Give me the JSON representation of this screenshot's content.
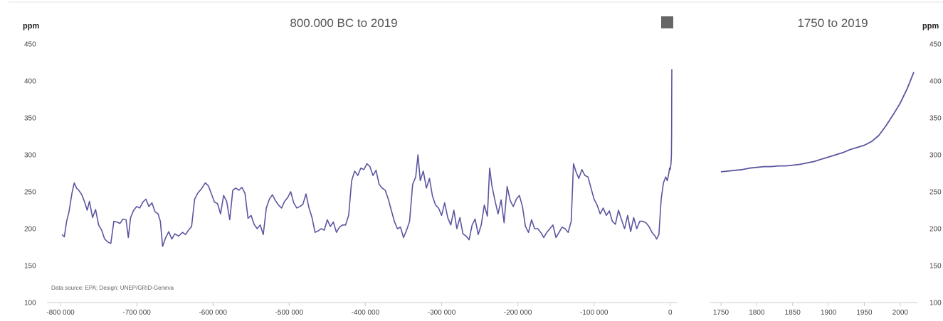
{
  "colors": {
    "series": "#5b56a0",
    "axis": "#cccccc",
    "top_rule": "#e6e6e6",
    "menu_icon": "#666666"
  },
  "icons": {
    "menu": "hamburger-menu-icon"
  },
  "source_note": "Data source: EPA; Design: UNEP/GRID-Geneva",
  "chart_data": [
    {
      "type": "line",
      "title": "800.000 BC to 2019",
      "ylabel": "ppm",
      "ylim": [
        100,
        450
      ],
      "yticks": [
        100,
        150,
        200,
        250,
        300,
        350,
        400,
        450
      ],
      "xlim": [
        -800000,
        2019
      ],
      "xticks": [
        {
          "v": -800000,
          "label": "-800 000"
        },
        {
          "v": -700000,
          "label": "-700 000"
        },
        {
          "v": -600000,
          "label": "-600 000"
        },
        {
          "v": -500000,
          "label": "-500 000"
        },
        {
          "v": -400000,
          "label": "-400 000"
        },
        {
          "v": -300000,
          "label": "-300 000"
        },
        {
          "v": -200000,
          "label": "-200 000"
        },
        {
          "v": -100000,
          "label": "-100 000"
        },
        {
          "v": 0,
          "label": "0"
        }
      ],
      "grid": false,
      "series": [
        {
          "points": [
            [
              -798000,
              192
            ],
            [
              -795000,
              189
            ],
            [
              -792000,
              210
            ],
            [
              -789000,
              222
            ],
            [
              -785000,
              248
            ],
            [
              -782000,
              262
            ],
            [
              -779000,
              255
            ],
            [
              -776000,
              252
            ],
            [
              -772000,
              246
            ],
            [
              -768000,
              235
            ],
            [
              -765000,
              225
            ],
            [
              -762000,
              237
            ],
            [
              -758000,
              215
            ],
            [
              -754000,
              226
            ],
            [
              -750000,
              205
            ],
            [
              -746000,
              198
            ],
            [
              -742000,
              186
            ],
            [
              -738000,
              182
            ],
            [
              -734000,
              180
            ],
            [
              -730000,
              210
            ],
            [
              -726000,
              209
            ],
            [
              -722000,
              207
            ],
            [
              -718000,
              213
            ],
            [
              -714000,
              212
            ],
            [
              -711000,
              188
            ],
            [
              -708000,
              215
            ],
            [
              -704000,
              225
            ],
            [
              -700000,
              230
            ],
            [
              -696000,
              228
            ],
            [
              -692000,
              236
            ],
            [
              -688000,
              240
            ],
            [
              -684000,
              230
            ],
            [
              -680000,
              235
            ],
            [
              -676000,
              223
            ],
            [
              -672000,
              220
            ],
            [
              -669000,
              210
            ],
            [
              -666000,
              176
            ],
            [
              -662000,
              188
            ],
            [
              -658000,
              196
            ],
            [
              -654000,
              186
            ],
            [
              -650000,
              193
            ],
            [
              -645000,
              190
            ],
            [
              -640000,
              195
            ],
            [
              -636000,
              192
            ],
            [
              -632000,
              198
            ],
            [
              -628000,
              203
            ],
            [
              -624000,
              240
            ],
            [
              -620000,
              248
            ],
            [
              -615000,
              254
            ],
            [
              -610000,
              262
            ],
            [
              -606000,
              258
            ],
            [
              -602000,
              247
            ],
            [
              -598000,
              236
            ],
            [
              -594000,
              234
            ],
            [
              -590000,
              220
            ],
            [
              -586000,
              245
            ],
            [
              -582000,
              237
            ],
            [
              -578000,
              212
            ],
            [
              -574000,
              252
            ],
            [
              -570000,
              255
            ],
            [
              -566000,
              252
            ],
            [
              -562000,
              256
            ],
            [
              -558000,
              248
            ],
            [
              -554000,
              214
            ],
            [
              -550000,
              218
            ],
            [
              -546000,
              206
            ],
            [
              -542000,
              200
            ],
            [
              -538000,
              205
            ],
            [
              -534000,
              192
            ],
            [
              -530000,
              228
            ],
            [
              -526000,
              240
            ],
            [
              -522000,
              246
            ],
            [
              -518000,
              238
            ],
            [
              -514000,
              232
            ],
            [
              -510000,
              228
            ],
            [
              -506000,
              237
            ],
            [
              -502000,
              242
            ],
            [
              -498000,
              250
            ],
            [
              -494000,
              235
            ],
            [
              -490000,
              228
            ],
            [
              -486000,
              230
            ],
            [
              -482000,
              233
            ],
            [
              -478000,
              247
            ],
            [
              -474000,
              228
            ],
            [
              -470000,
              215
            ],
            [
              -466000,
              195
            ],
            [
              -462000,
              197
            ],
            [
              -458000,
              200
            ],
            [
              -454000,
              198
            ],
            [
              -450000,
              212
            ],
            [
              -446000,
              203
            ],
            [
              -442000,
              209
            ],
            [
              -438000,
              195
            ],
            [
              -434000,
              202
            ],
            [
              -430000,
              205
            ],
            [
              -426000,
              205
            ],
            [
              -422000,
              218
            ],
            [
              -418000,
              265
            ],
            [
              -414000,
              278
            ],
            [
              -410000,
              272
            ],
            [
              -406000,
              282
            ],
            [
              -402000,
              280
            ],
            [
              -398000,
              288
            ],
            [
              -394000,
              284
            ],
            [
              -390000,
              272
            ],
            [
              -386000,
              279
            ],
            [
              -382000,
              260
            ],
            [
              -378000,
              255
            ],
            [
              -374000,
              252
            ],
            [
              -370000,
              240
            ],
            [
              -366000,
              225
            ],
            [
              -362000,
              210
            ],
            [
              -358000,
              200
            ],
            [
              -354000,
              202
            ],
            [
              -350000,
              188
            ],
            [
              -346000,
              198
            ],
            [
              -342000,
              210
            ],
            [
              -338000,
              260
            ],
            [
              -334000,
              270
            ],
            [
              -331000,
              300
            ],
            [
              -328000,
              265
            ],
            [
              -324000,
              278
            ],
            [
              -320000,
              255
            ],
            [
              -316000,
              268
            ],
            [
              -312000,
              244
            ],
            [
              -308000,
              232
            ],
            [
              -304000,
              228
            ],
            [
              -300000,
              218
            ],
            [
              -296000,
              235
            ],
            [
              -292000,
              215
            ],
            [
              -288000,
              205
            ],
            [
              -284000,
              225
            ],
            [
              -280000,
              200
            ],
            [
              -276000,
              215
            ],
            [
              -272000,
              193
            ],
            [
              -268000,
              190
            ],
            [
              -264000,
              185
            ],
            [
              -260000,
              205
            ],
            [
              -256000,
              213
            ],
            [
              -252000,
              192
            ],
            [
              -248000,
              205
            ],
            [
              -244000,
              232
            ],
            [
              -240000,
              217
            ],
            [
              -237000,
              282
            ],
            [
              -234000,
              258
            ],
            [
              -230000,
              238
            ],
            [
              -226000,
              220
            ],
            [
              -222000,
              239
            ],
            [
              -218000,
              208
            ],
            [
              -214000,
              257
            ],
            [
              -210000,
              238
            ],
            [
              -206000,
              230
            ],
            [
              -202000,
              240
            ],
            [
              -198000,
              245
            ],
            [
              -194000,
              230
            ],
            [
              -190000,
              203
            ],
            [
              -186000,
              195
            ],
            [
              -182000,
              212
            ],
            [
              -178000,
              200
            ],
            [
              -174000,
              200
            ],
            [
              -170000,
              195
            ],
            [
              -166000,
              188
            ],
            [
              -162000,
              195
            ],
            [
              -158000,
              200
            ],
            [
              -154000,
              205
            ],
            [
              -150000,
              188
            ],
            [
              -146000,
              195
            ],
            [
              -142000,
              202
            ],
            [
              -138000,
              200
            ],
            [
              -134000,
              195
            ],
            [
              -130000,
              210
            ],
            [
              -127000,
              288
            ],
            [
              -124000,
              278
            ],
            [
              -120000,
              268
            ],
            [
              -116000,
              280
            ],
            [
              -112000,
              272
            ],
            [
              -108000,
              270
            ],
            [
              -104000,
              255
            ],
            [
              -100000,
              240
            ],
            [
              -96000,
              232
            ],
            [
              -92000,
              220
            ],
            [
              -88000,
              228
            ],
            [
              -84000,
              218
            ],
            [
              -80000,
              224
            ],
            [
              -76000,
              210
            ],
            [
              -72000,
              206
            ],
            [
              -68000,
              225
            ],
            [
              -64000,
              212
            ],
            [
              -60000,
              200
            ],
            [
              -56000,
              218
            ],
            [
              -52000,
              196
            ],
            [
              -48000,
              215
            ],
            [
              -44000,
              200
            ],
            [
              -40000,
              210
            ],
            [
              -36000,
              210
            ],
            [
              -32000,
              208
            ],
            [
              -28000,
              203
            ],
            [
              -24000,
              195
            ],
            [
              -20000,
              190
            ],
            [
              -18000,
              186
            ],
            [
              -15000,
              192
            ],
            [
              -12000,
              240
            ],
            [
              -9000,
              262
            ],
            [
              -6000,
              270
            ],
            [
              -4000,
              265
            ],
            [
              -2000,
              275
            ],
            [
              -1000,
              282
            ],
            [
              0,
              280
            ],
            [
              500,
              285
            ],
            [
              1000,
              290
            ],
            [
              1500,
              300
            ],
            [
              1750,
              330
            ],
            [
              1850,
              370
            ],
            [
              1950,
              400
            ],
            [
              2019,
              416
            ]
          ]
        }
      ]
    },
    {
      "type": "line",
      "title": "1750 to 2019",
      "ylabel": "ppm",
      "ylim": [
        100,
        450
      ],
      "yticks": [
        100,
        150,
        200,
        250,
        300,
        350,
        400,
        450
      ],
      "xlim": [
        1750,
        2019
      ],
      "xticks": [
        {
          "v": 1750,
          "label": "1750"
        },
        {
          "v": 1800,
          "label": "1800"
        },
        {
          "v": 1850,
          "label": "1850"
        },
        {
          "v": 1900,
          "label": "1900"
        },
        {
          "v": 1950,
          "label": "1950"
        },
        {
          "v": 2000,
          "label": "2000"
        }
      ],
      "grid": false,
      "series": [
        {
          "points": [
            [
              1750,
              277
            ],
            [
              1760,
              278
            ],
            [
              1770,
              279
            ],
            [
              1780,
              280
            ],
            [
              1790,
              282
            ],
            [
              1800,
              283
            ],
            [
              1810,
              284
            ],
            [
              1820,
              284
            ],
            [
              1830,
              285
            ],
            [
              1840,
              285
            ],
            [
              1850,
              286
            ],
            [
              1860,
              287
            ],
            [
              1870,
              289
            ],
            [
              1880,
              291
            ],
            [
              1890,
              294
            ],
            [
              1900,
              297
            ],
            [
              1910,
              300
            ],
            [
              1920,
              303
            ],
            [
              1930,
              307
            ],
            [
              1940,
              310
            ],
            [
              1950,
              313
            ],
            [
              1960,
              318
            ],
            [
              1970,
              326
            ],
            [
              1980,
              339
            ],
            [
              1990,
              354
            ],
            [
              2000,
              370
            ],
            [
              2010,
              390
            ],
            [
              2019,
              412
            ]
          ]
        }
      ]
    }
  ]
}
